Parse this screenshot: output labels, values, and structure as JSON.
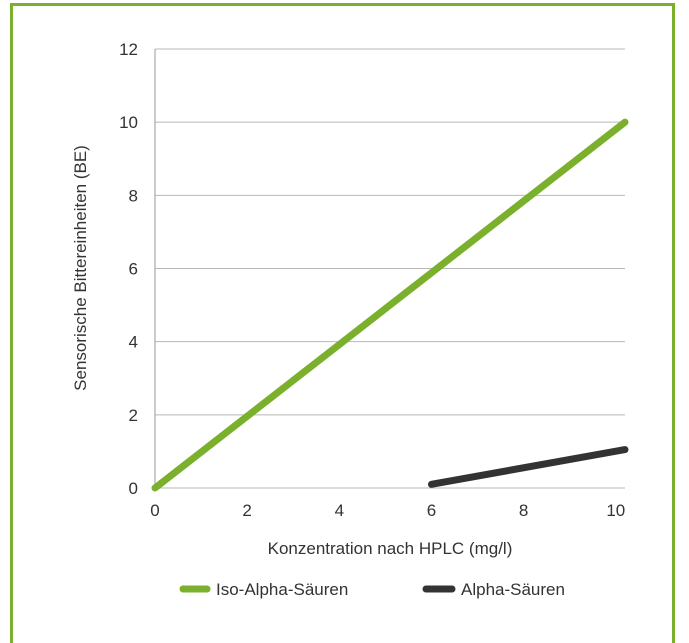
{
  "chart_data": {
    "type": "line",
    "xlabel": "Konzentration nach HPLC (mg/l)",
    "ylabel": "Sensorische Bittereinheiten (BE)",
    "xlim": [
      0,
      10.2
    ],
    "ylim": [
      0,
      12
    ],
    "x_ticks": [
      "0",
      "2",
      "4",
      "6",
      "8",
      "10"
    ],
    "y_ticks": [
      "0",
      "2",
      "4",
      "6",
      "8",
      "10",
      "12"
    ],
    "grid": "horizontal",
    "legend_position": "bottom",
    "series": [
      {
        "name": "Iso-Alpha-Säuren",
        "color": "#7ab02c",
        "points": [
          [
            0,
            0
          ],
          [
            10.2,
            10
          ]
        ]
      },
      {
        "name": "Alpha-Säuren",
        "color": "#333333",
        "points": [
          [
            6,
            0.1
          ],
          [
            10.2,
            1.05
          ]
        ]
      }
    ]
  }
}
